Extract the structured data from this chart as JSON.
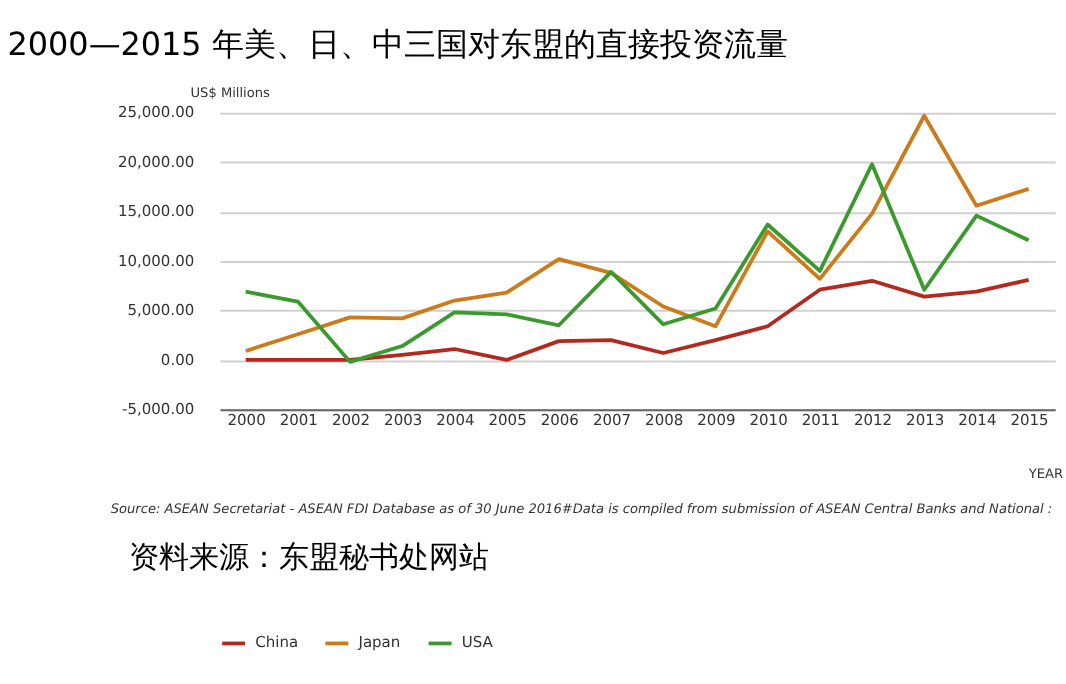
{
  "chart_data": {
    "type": "line",
    "title": "2000—2015 年美、日、中三国对东盟的直接投资流量",
    "ylabel": "US$ Millions",
    "xlabel": "YEAR",
    "categories": [
      "2000",
      "2001",
      "2002",
      "2003",
      "2004",
      "2005",
      "2006",
      "2007",
      "2008",
      "2009",
      "2010",
      "2011",
      "2012",
      "2013",
      "2014",
      "2015"
    ],
    "series": [
      {
        "name": "China",
        "color": "#b22a1e",
        "values": [
          0,
          0,
          0,
          500,
          1100,
          0,
          1900,
          2000,
          700,
          2000,
          3400,
          7100,
          8000,
          6400,
          6900,
          8100
        ]
      },
      {
        "name": "Japan",
        "color": "#cc7a1a",
        "values": [
          900,
          2600,
          4300,
          4200,
          6000,
          6800,
          10200,
          8800,
          5400,
          3400,
          13000,
          8200,
          14800,
          24700,
          15600,
          17300
        ]
      },
      {
        "name": "USA",
        "color": "#3a9a2e",
        "values": [
          6900,
          5900,
          -200,
          1400,
          4800,
          4600,
          3500,
          8900,
          3600,
          5200,
          13700,
          9000,
          19800,
          7100,
          14600,
          12100
        ]
      }
    ],
    "ylim": [
      -5000,
      25000
    ],
    "yticks": [
      {
        "value": -5000,
        "label": "-5,000.00"
      },
      {
        "value": 0,
        "label": "0.00"
      },
      {
        "value": 5000,
        "label": "5,000.00"
      },
      {
        "value": 10000,
        "label": "10,000.00"
      },
      {
        "value": 15000,
        "label": "15,000.00"
      },
      {
        "value": 20000,
        "label": "20,000.00"
      },
      {
        "value": 25000,
        "label": "25,000.00"
      }
    ],
    "grid": "y",
    "legend": "bottom",
    "marker": "none",
    "line_style": "solid",
    "annotations": [
      "Source: ASEAN Secretariat - ASEAN FDI Database as of 30 June 2016#Data is compiled from submission of ASEAN Central Banks and National :",
      "资料来源：东盟秘书处网站"
    ]
  }
}
